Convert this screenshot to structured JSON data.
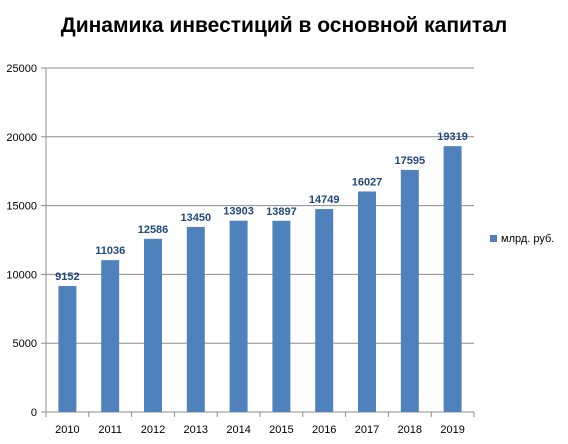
{
  "chart_data": {
    "type": "bar",
    "title": "Динамика инвестиций в основной капитал",
    "xlabel": "",
    "ylabel": "",
    "categories": [
      "2010",
      "2011",
      "2012",
      "2013",
      "2014",
      "2015",
      "2016",
      "2017",
      "2018",
      "2019"
    ],
    "series": [
      {
        "name": "млрд. руб.",
        "values": [
          9152,
          11036,
          12586,
          13450,
          13903,
          13897,
          14749,
          16027,
          17595,
          19319
        ],
        "color": "#4f81bd"
      }
    ],
    "ylim": [
      0,
      25000
    ],
    "yticks": [
      0,
      5000,
      10000,
      15000,
      20000,
      25000
    ],
    "grid": true,
    "legend_position": "right",
    "data_label_color": "#1f497d",
    "grid_color": "#8c8c8c",
    "axis_color": "#8c8c8c"
  }
}
